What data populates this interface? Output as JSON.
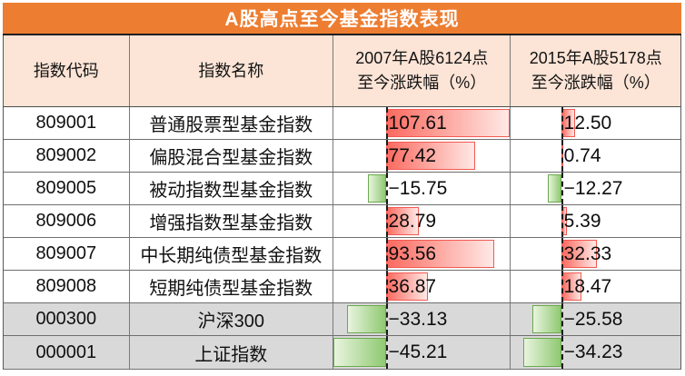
{
  "title": "A股高点至今基金指数表现",
  "headers": {
    "code": "指数代码",
    "name": "指数名称",
    "h2007_line1": "2007年A股6124点",
    "h2007_line2": "至今涨跌幅（%）",
    "h2015_line1": "2015年A股5178点",
    "h2015_line2": "至今涨跌幅（%）"
  },
  "chart_data": {
    "type": "table",
    "title": "A股高点至今基金指数表现",
    "columns": [
      "指数代码",
      "指数名称",
      "2007年A股6124点至今涨跌幅（%）",
      "2015年A股5178点至今涨跌幅（%）"
    ],
    "bar_axis": {
      "min": -45.21,
      "max": 107.61,
      "note": "in-cell data bars share one scale across both value columns; dashed line marks zero"
    },
    "rows": [
      {
        "code": "809001",
        "name": "普通股票型基金指数",
        "v2007": 107.61,
        "v2015": 12.5,
        "highlight": false
      },
      {
        "code": "809002",
        "name": "偏股混合型基金指数",
        "v2007": 77.42,
        "v2015": 0.74,
        "highlight": false
      },
      {
        "code": "809005",
        "name": "被动指数型基金指数",
        "v2007": -15.75,
        "v2015": -12.27,
        "highlight": false
      },
      {
        "code": "809006",
        "name": "增强指数型基金指数",
        "v2007": 28.79,
        "v2015": 5.39,
        "highlight": false
      },
      {
        "code": "809007",
        "name": "中长期纯债型基金指数",
        "v2007": 93.56,
        "v2015": 32.33,
        "highlight": false
      },
      {
        "code": "809008",
        "name": "短期纯债型基金指数",
        "v2007": 36.87,
        "v2015": 18.47,
        "highlight": false
      },
      {
        "code": "000300",
        "name": "沪深300",
        "v2007": -33.13,
        "v2015": -25.58,
        "highlight": true
      },
      {
        "code": "000001",
        "name": "上证指数",
        "v2007": -45.21,
        "v2015": -34.23,
        "highlight": true
      }
    ]
  },
  "colors": {
    "title_bg": "#ED7D31",
    "title_text": "#FFFFFF",
    "header_bg": "#FCE4D6",
    "row_bg": "#FFFFFF",
    "highlight_row_bg": "#D9D9D9",
    "positive_bar_border": "#F25A52",
    "positive_bar_start": "#FB6A60",
    "positive_bar_end": "#FFE9E6",
    "negative_bar_border": "#6BA84F",
    "negative_bar_start": "#8FC971",
    "negative_bar_end": "#E9F4DF",
    "text": "#1A1A1A"
  }
}
